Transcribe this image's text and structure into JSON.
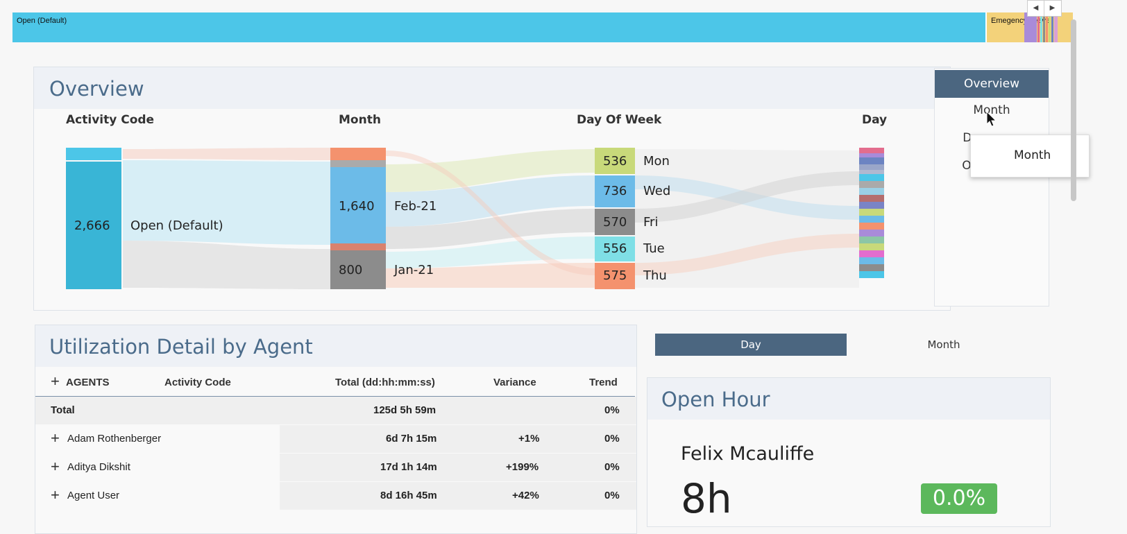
{
  "top_strip": {
    "segments": [
      {
        "label": "Open (Default)",
        "color": "#4cc6e8"
      },
      {
        "label": "Emegency Leave",
        "color": "#f3d27a"
      }
    ],
    "scroll_left_icon": "◀",
    "scroll_right_icon": "▶"
  },
  "overview": {
    "title": "Overview",
    "columns": [
      "Activity Code",
      "Month",
      "Day Of Week",
      "Day"
    ],
    "activity_code": {
      "value": "2,666",
      "label": "Open (Default)"
    },
    "months": [
      {
        "value": "1,640",
        "label": "Feb-21",
        "color": "#6cbbe8"
      },
      {
        "value": "800",
        "label": "Jan-21",
        "color": "#8c8c8c"
      }
    ],
    "days_of_week": [
      {
        "value": "536",
        "label": "Mon",
        "color": "#c8d97a"
      },
      {
        "value": "736",
        "label": "Wed",
        "color": "#6cbbe8"
      },
      {
        "value": "570",
        "label": "Fri",
        "color": "#8c8c8c"
      },
      {
        "value": "556",
        "label": "Tue",
        "color": "#7fdfe6"
      },
      {
        "value": "575",
        "label": "Thu",
        "color": "#f4926e"
      }
    ]
  },
  "right_nav": {
    "items": [
      {
        "label": "Overview",
        "active": true
      },
      {
        "label": "Month",
        "active": false
      },
      {
        "label": "Da",
        "active": false
      },
      {
        "label": "O",
        "active": false
      }
    ],
    "tooltip": "Month"
  },
  "utilization": {
    "title": "Utilization Detail by Agent",
    "headers": {
      "agents": "AGENTS",
      "activity_code": "Activity Code",
      "total": "Total (dd:hh:mm:ss)",
      "variance": "Variance",
      "trend": "Trend"
    },
    "total_row": {
      "label": "Total",
      "total": "125d 5h 59m",
      "variance": "",
      "trend": "0%"
    },
    "rows": [
      {
        "agent": "Adam Rothenberger",
        "total": "6d 7h 15m",
        "variance": "+1%",
        "trend": "0%"
      },
      {
        "agent": "Aditya Dikshit",
        "total": "17d 1h 14m",
        "variance": "+199%",
        "trend": "0%"
      },
      {
        "agent": "Agent User",
        "total": "8d 16h 45m",
        "variance": "+42%",
        "trend": "0%"
      }
    ]
  },
  "toggle": {
    "day": "Day",
    "month": "Month"
  },
  "open_hour": {
    "title": "Open Hour",
    "agent": "Felix Mcauliffe",
    "value": "8h",
    "percent": "0.0%"
  }
}
